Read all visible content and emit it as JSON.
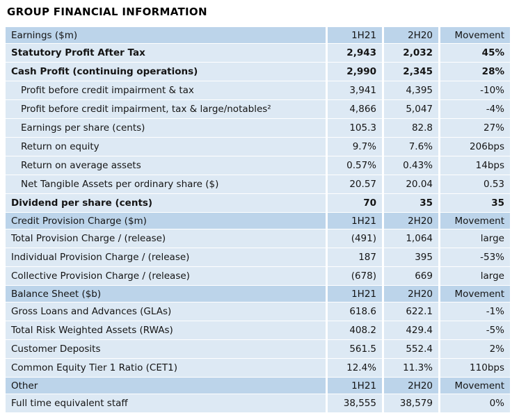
{
  "page_title": "GROUP FINANCIAL INFORMATION",
  "colors": {
    "section_header_bg": "#bcd4ea",
    "data_row_bg": "#dde9f4",
    "text_color": "#141414",
    "page_bg": "#ffffff"
  },
  "table": {
    "value_columns": [
      "1H21",
      "2H20",
      "Movement"
    ],
    "rows": [
      {
        "type": "section",
        "bold": false,
        "indent": false,
        "cells": [
          "Earnings ($m)",
          "1H21",
          "2H20",
          "Movement"
        ]
      },
      {
        "type": "data",
        "bold": true,
        "indent": false,
        "cells": [
          "Statutory Profit After Tax",
          "2,943",
          "2,032",
          "45%"
        ]
      },
      {
        "type": "data",
        "bold": true,
        "indent": false,
        "cells": [
          "Cash Profit (continuing operations)",
          "2,990",
          "2,345",
          "28%"
        ]
      },
      {
        "type": "data",
        "bold": false,
        "indent": true,
        "cells": [
          "Profit before credit impairment & tax",
          "3,941",
          "4,395",
          "-10%"
        ]
      },
      {
        "type": "data",
        "bold": false,
        "indent": true,
        "cells": [
          "Profit before credit impairment, tax & large/notables²",
          "4,866",
          "5,047",
          "-4%"
        ]
      },
      {
        "type": "data",
        "bold": false,
        "indent": true,
        "cells": [
          "Earnings per share (cents)",
          "105.3",
          "82.8",
          "27%"
        ]
      },
      {
        "type": "data",
        "bold": false,
        "indent": true,
        "cells": [
          "Return on equity",
          "9.7%",
          "7.6%",
          "206bps"
        ]
      },
      {
        "type": "data",
        "bold": false,
        "indent": true,
        "cells": [
          "Return on average assets",
          "0.57%",
          "0.43%",
          "14bps"
        ]
      },
      {
        "type": "data",
        "bold": false,
        "indent": true,
        "cells": [
          "Net Tangible Assets per ordinary share ($)",
          "20.57",
          "20.04",
          "0.53"
        ]
      },
      {
        "type": "data",
        "bold": true,
        "indent": false,
        "cells": [
          "Dividend per share (cents)",
          "70",
          "35",
          "35"
        ]
      },
      {
        "type": "section",
        "bold": false,
        "indent": false,
        "cells": [
          "Credit Provision Charge ($m)",
          "1H21",
          "2H20",
          "Movement"
        ]
      },
      {
        "type": "data",
        "bold": false,
        "indent": false,
        "cells": [
          "Total Provision Charge / (release)",
          "(491)",
          "1,064",
          "large"
        ]
      },
      {
        "type": "data",
        "bold": false,
        "indent": false,
        "cells": [
          "Individual Provision Charge / (release)",
          "187",
          "395",
          "-53%"
        ]
      },
      {
        "type": "data",
        "bold": false,
        "indent": false,
        "cells": [
          "Collective Provision Charge / (release)",
          "(678)",
          "669",
          "large"
        ]
      },
      {
        "type": "section",
        "bold": false,
        "indent": false,
        "cells": [
          "Balance Sheet ($b)",
          "1H21",
          "2H20",
          "Movement"
        ]
      },
      {
        "type": "data",
        "bold": false,
        "indent": false,
        "cells": [
          "Gross Loans and Advances (GLAs)",
          "618.6",
          "622.1",
          "-1%"
        ]
      },
      {
        "type": "data",
        "bold": false,
        "indent": false,
        "cells": [
          "Total Risk Weighted Assets (RWAs)",
          "408.2",
          "429.4",
          "-5%"
        ]
      },
      {
        "type": "data",
        "bold": false,
        "indent": false,
        "cells": [
          "Customer Deposits",
          "561.5",
          "552.4",
          "2%"
        ]
      },
      {
        "type": "data",
        "bold": false,
        "indent": false,
        "cells": [
          "Common Equity Tier 1 Ratio (CET1)",
          "12.4%",
          "11.3%",
          "110bps"
        ]
      },
      {
        "type": "section",
        "bold": false,
        "indent": false,
        "cells": [
          "Other",
          "1H21",
          "2H20",
          "Movement"
        ]
      },
      {
        "type": "data",
        "bold": false,
        "indent": false,
        "cells": [
          "Full time equivalent staff",
          "38,555",
          "38,579",
          "0%"
        ]
      }
    ]
  }
}
